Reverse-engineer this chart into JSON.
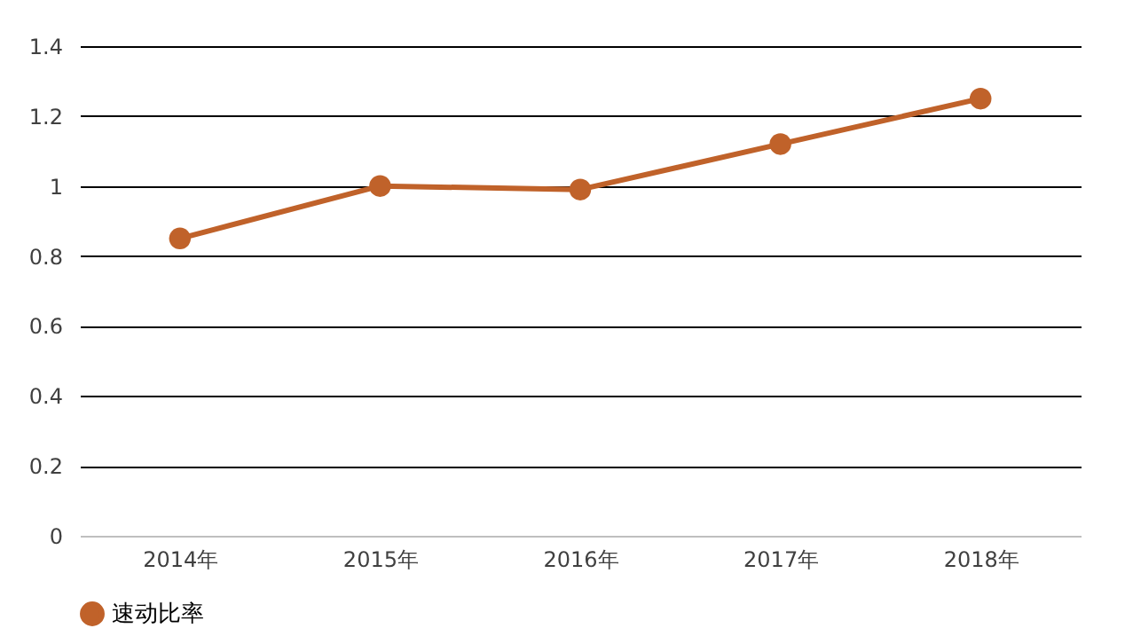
{
  "chart_data": {
    "type": "line",
    "categories": [
      "2014年",
      "2015年",
      "2016年",
      "2017年",
      "2018年"
    ],
    "series": [
      {
        "name": "速动比率",
        "color": "#c0622a",
        "values": [
          0.85,
          1.0,
          0.99,
          1.12,
          1.25
        ]
      }
    ],
    "ylim": [
      0,
      1.4
    ],
    "yticks": [
      0,
      0.2,
      0.4,
      0.6,
      0.8,
      1,
      1.2,
      1.4
    ],
    "grid": "y",
    "legend": "bottom",
    "marker": "circle",
    "line_style": "solid"
  }
}
